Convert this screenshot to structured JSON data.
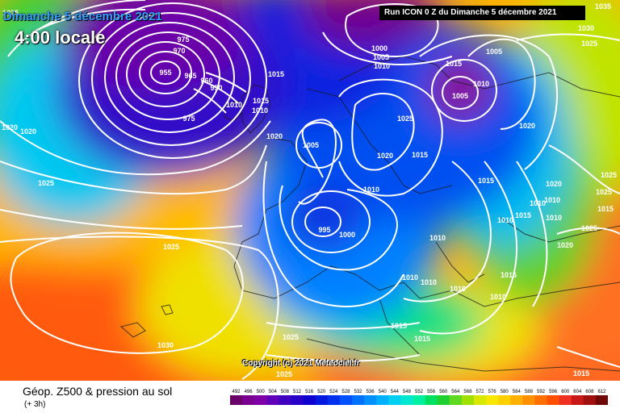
{
  "header": {
    "date_title": "Dimanche 5 décembre 2021",
    "time_title": "4:00 locale",
    "run_info": "Run ICON 0 Z du Dimanche 5 décembre 2021"
  },
  "copyright": "Copyright (c) 2021 Meteociel.fr",
  "legend": {
    "title": "Géop. Z500 & pression au sol",
    "subtitle": "(+ 3h)",
    "ticks": [
      "492",
      "496",
      "500",
      "504",
      "508",
      "512",
      "516",
      "520",
      "524",
      "528",
      "532",
      "536",
      "540",
      "544",
      "548",
      "552",
      "556",
      "560",
      "564",
      "568",
      "572",
      "576",
      "580",
      "584",
      "588",
      "592",
      "596",
      "600",
      "604",
      "608",
      "612"
    ],
    "colors": [
      "#6a006a",
      "#7a0090",
      "#8000a8",
      "#6000b8",
      "#4000c0",
      "#2800c8",
      "#1000d0",
      "#0018e0",
      "#0030f0",
      "#0050ff",
      "#0070ff",
      "#0090ff",
      "#00b0ff",
      "#00d0f0",
      "#00e8d0",
      "#00f0a0",
      "#00e060",
      "#20d030",
      "#60d820",
      "#a0e000",
      "#d8e800",
      "#f8e800",
      "#ffd000",
      "#ffb000",
      "#ff9000",
      "#ff7000",
      "#ff5000",
      "#f03020",
      "#c81818",
      "#a01010",
      "#700808"
    ]
  },
  "isobar_labels": [
    {
      "text": "975"
    },
    {
      "text": "970"
    },
    {
      "text": "965"
    },
    {
      "text": "960"
    },
    {
      "text": "955"
    },
    {
      "text": "950"
    },
    {
      "text": "975"
    },
    {
      "text": "1015"
    },
    {
      "text": "1010"
    },
    {
      "text": "1015"
    },
    {
      "text": "1010"
    },
    {
      "text": "1020"
    },
    {
      "text": "1020"
    },
    {
      "text": "1025"
    },
    {
      "text": "1025"
    },
    {
      "text": "1020"
    },
    {
      "text": "1025"
    },
    {
      "text": "1030"
    },
    {
      "text": "1025"
    },
    {
      "text": "1025"
    },
    {
      "text": "995"
    },
    {
      "text": "1000"
    },
    {
      "text": "1000"
    },
    {
      "text": "1005"
    },
    {
      "text": "1010"
    },
    {
      "text": "1005"
    },
    {
      "text": "1025"
    },
    {
      "text": "1020"
    },
    {
      "text": "1015"
    },
    {
      "text": "1010"
    },
    {
      "text": "1010"
    },
    {
      "text": "1015"
    },
    {
      "text": "1005"
    },
    {
      "text": "1010"
    },
    {
      "text": "1005"
    },
    {
      "text": "1020"
    },
    {
      "text": "1015"
    },
    {
      "text": "1010"
    },
    {
      "text": "1010"
    },
    {
      "text": "1015"
    },
    {
      "text": "1010"
    },
    {
      "text": "1020"
    },
    {
      "text": "1025"
    },
    {
      "text": "1015"
    },
    {
      "text": "1010"
    },
    {
      "text": "1010"
    },
    {
      "text": "1010"
    },
    {
      "text": "1010"
    },
    {
      "text": "1015"
    },
    {
      "text": "1015"
    },
    {
      "text": "1030"
    },
    {
      "text": "1025"
    },
    {
      "text": "1025"
    },
    {
      "text": "1035"
    },
    {
      "text": "1020"
    },
    {
      "text": "1025"
    },
    {
      "text": "1015"
    },
    {
      "text": "1015"
    },
    {
      "text": "1010"
    }
  ]
}
